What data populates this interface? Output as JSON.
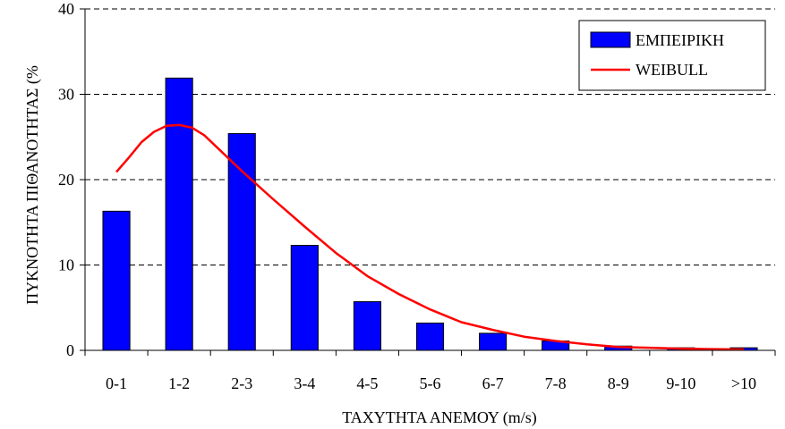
{
  "chart_data": {
    "type": "bar",
    "categories": [
      "0-1",
      "1-2",
      "2-3",
      "3-4",
      "4-5",
      "5-6",
      "6-7",
      "7-8",
      "8-9",
      "9-10",
      ">10"
    ],
    "series": [
      {
        "name": "ΕΜΠΕΙΡΙΚΗ",
        "type": "bar",
        "color": "#0000FF",
        "values": [
          16.3,
          31.9,
          25.4,
          12.3,
          5.7,
          3.2,
          2.0,
          1.1,
          0.5,
          0.3,
          0.3
        ]
      },
      {
        "name": "WEIBULL",
        "type": "line",
        "color": "#FF0000",
        "x": [
          0.5,
          0.7,
          0.9,
          1.1,
          1.3,
          1.5,
          1.7,
          1.9,
          2.1,
          2.5,
          3.0,
          3.5,
          4.0,
          4.5,
          5.0,
          5.5,
          6.0,
          6.5,
          7.0,
          7.5,
          8.0,
          8.5,
          9.0,
          9.5,
          10.0,
          10.5
        ],
        "values": [
          20.9,
          22.6,
          24.4,
          25.6,
          26.3,
          26.4,
          26.1,
          25.2,
          23.8,
          21.0,
          17.7,
          14.5,
          11.4,
          8.7,
          6.6,
          4.8,
          3.3,
          2.4,
          1.6,
          1.1,
          0.7,
          0.4,
          0.3,
          0.2,
          0.15,
          0.1
        ]
      }
    ],
    "xlabel": "ΤΑΧΥΤΗΤΑ ΑΝΕΜΟΥ (m/s)",
    "ylabel": "ΠΥΚΝΟΤΗΤΑ ΠΙΘΑΝΟΤΗΤΑΣ (%",
    "ylim": [
      0,
      40
    ],
    "yticks": [
      0,
      10,
      20,
      30,
      40
    ],
    "grid": "horizontal-dashed",
    "legend": "top-right"
  }
}
